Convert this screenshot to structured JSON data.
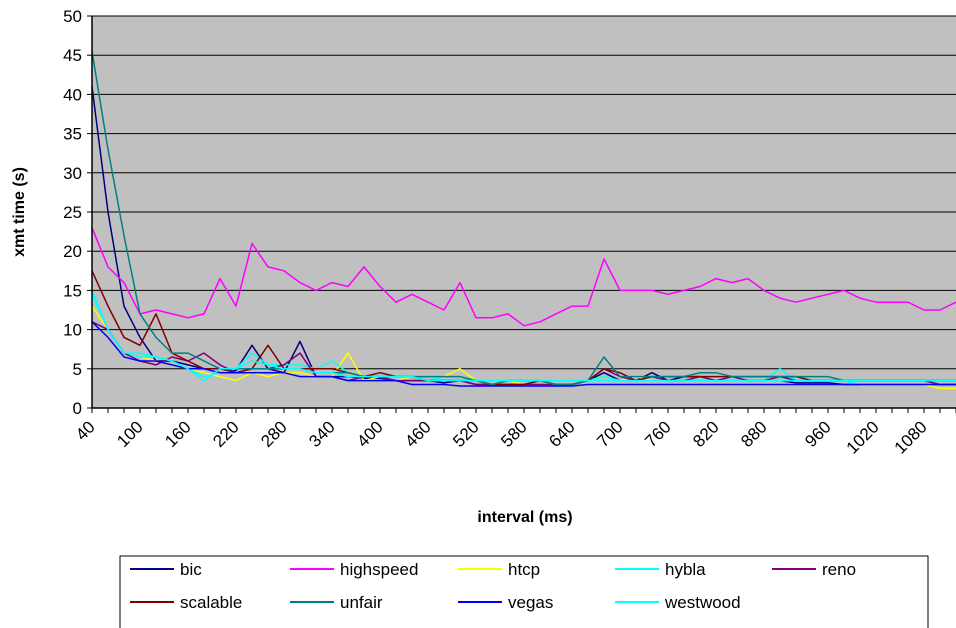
{
  "chart_data": {
    "type": "line",
    "title": "",
    "xlabel": "interval (ms)",
    "ylabel": "xmt time (s)",
    "ylim": [
      0,
      50
    ],
    "yticks": [
      0,
      5,
      10,
      15,
      20,
      25,
      30,
      35,
      40,
      45,
      50
    ],
    "x": [
      40,
      60,
      80,
      100,
      120,
      140,
      160,
      180,
      200,
      220,
      240,
      260,
      280,
      300,
      320,
      340,
      360,
      380,
      400,
      420,
      440,
      460,
      480,
      500,
      520,
      540,
      560,
      580,
      600,
      620,
      640,
      660,
      680,
      700,
      720,
      740,
      760,
      780,
      800,
      820,
      840,
      860,
      880,
      900,
      920,
      940,
      960,
      980,
      1000,
      1020,
      1040,
      1060,
      1080,
      1100,
      1120
    ],
    "xtick_labels": [
      "40",
      "100",
      "160",
      "220",
      "280",
      "340",
      "400",
      "460",
      "520",
      "580",
      "640",
      "700",
      "760",
      "820",
      "880",
      "960",
      "1020",
      "1080"
    ],
    "grid": true,
    "plot_background": "#c0c0c0",
    "legend_position": "bottom",
    "series": [
      {
        "name": "bic",
        "color": "#000080",
        "values": [
          41,
          25,
          13,
          9,
          6,
          6,
          5.5,
          5,
          5,
          4.8,
          8,
          5,
          4.5,
          8.5,
          4,
          4,
          4,
          3.8,
          3.8,
          3.5,
          3.5,
          3.5,
          3.2,
          3.5,
          3,
          3,
          3,
          3,
          3,
          3,
          3,
          3.5,
          4.5,
          3.5,
          3.5,
          4.5,
          3.5,
          4,
          4,
          3.5,
          3.5,
          3.5,
          3.5,
          3.5,
          3.2,
          3.2,
          3.2,
          3,
          3,
          3,
          3,
          3,
          3,
          3,
          3
        ]
      },
      {
        "name": "highspeed",
        "color": "#ff00ff",
        "values": [
          23,
          18,
          16,
          12,
          12.5,
          12,
          11.5,
          12,
          16.5,
          13,
          21,
          18,
          17.5,
          16,
          15,
          16,
          15.5,
          18,
          15.5,
          13.5,
          14.5,
          13.5,
          12.5,
          16,
          11.5,
          11.5,
          12,
          10.5,
          11,
          12,
          13,
          13,
          19,
          15,
          15,
          15,
          14.5,
          15,
          15.5,
          16.5,
          16,
          16.5,
          15,
          14,
          13.5,
          14,
          14.5,
          15,
          14,
          13.5,
          13.5,
          13.5,
          12.5,
          12.5,
          13.5
        ]
      },
      {
        "name": "htcp",
        "color": "#ffff00",
        "values": [
          13,
          10,
          7,
          6.5,
          6,
          5.5,
          5,
          4.5,
          4,
          3.5,
          4.5,
          4,
          4.5,
          4.5,
          4,
          4,
          7,
          3.5,
          4,
          3.5,
          4,
          3.5,
          4,
          5,
          3.5,
          3,
          3.5,
          3,
          3,
          3,
          3,
          3.5,
          4,
          3.5,
          4,
          3.5,
          3.5,
          3.5,
          4,
          3.5,
          3.5,
          3.5,
          3.5,
          3.5,
          3.5,
          3.5,
          3.5,
          3.5,
          3,
          3,
          3,
          3,
          3,
          2.5,
          2.5
        ]
      },
      {
        "name": "hybla",
        "color": "#00ffff",
        "values": [
          14.5,
          10,
          7,
          6.5,
          6.5,
          6,
          5,
          4,
          4.5,
          5,
          7,
          5.5,
          5.5,
          5.5,
          5,
          6,
          4.5,
          4,
          4,
          4,
          4,
          3.5,
          4,
          4,
          3.5,
          3.5,
          3.5,
          3.5,
          3,
          3,
          3,
          3.5,
          4,
          3.5,
          3.5,
          3.5,
          3.5,
          3.5,
          4,
          3.5,
          3.5,
          3.5,
          3.5,
          5,
          3.5,
          3.5,
          3.5,
          3.5,
          3,
          3,
          3,
          3,
          3,
          3,
          3
        ]
      },
      {
        "name": "reno",
        "color": "#800080",
        "values": [
          11,
          10,
          7,
          6,
          5.5,
          6.5,
          6,
          7,
          5.5,
          4.5,
          5,
          5,
          5.5,
          7,
          4,
          4,
          3.5,
          4,
          4,
          3.5,
          3.5,
          3.5,
          3.5,
          3.5,
          3,
          3,
          3,
          3,
          3,
          3,
          3,
          3.5,
          5,
          4,
          3.5,
          4,
          3.5,
          3.5,
          4,
          3.5,
          4,
          3.5,
          3.5,
          4,
          3.5,
          3.5,
          3.5,
          3.5,
          3.5,
          3.5,
          3.5,
          3.5,
          3.5,
          3,
          3
        ]
      },
      {
        "name": "scalable",
        "color": "#800000",
        "values": [
          17.5,
          13,
          9,
          8,
          12,
          7,
          6,
          5,
          5,
          4.5,
          5,
          8,
          5,
          5,
          5,
          5,
          4.5,
          4,
          4.5,
          4,
          4,
          3.5,
          3.5,
          3.5,
          3.5,
          3,
          3,
          3,
          3.5,
          3,
          3,
          3.5,
          5,
          4.5,
          3.5,
          4,
          4,
          4,
          4,
          4,
          4,
          4,
          4,
          4,
          4,
          3.5,
          3.5,
          3.5,
          3.5,
          3.5,
          3.5,
          3.5,
          3.5,
          3.5,
          3.5
        ]
      },
      {
        "name": "unfair",
        "color": "#008080",
        "values": [
          45.5,
          33,
          22,
          12,
          9,
          7,
          7,
          6,
          5,
          5,
          5,
          5,
          5,
          5,
          4.5,
          4.5,
          4.5,
          4,
          4,
          4,
          4,
          4,
          4,
          4,
          3.5,
          3,
          3.5,
          3.5,
          3.5,
          3,
          3,
          3.5,
          6.5,
          4,
          4,
          4,
          4,
          4,
          4.5,
          4.5,
          4,
          4,
          4,
          4,
          4,
          4,
          4,
          3.5,
          3.5,
          3.5,
          3.5,
          3.5,
          3.5,
          3.5,
          3.5
        ]
      },
      {
        "name": "vegas",
        "color": "#0000ff",
        "values": [
          11,
          9,
          6.5,
          6,
          6,
          5.5,
          5,
          5,
          4.5,
          4.5,
          4.5,
          4.5,
          4.5,
          4,
          4,
          4,
          3.5,
          3.5,
          3.5,
          3.5,
          3,
          3,
          3,
          2.8,
          2.8,
          2.8,
          2.8,
          2.8,
          2.8,
          2.8,
          2.8,
          3,
          3,
          3,
          3,
          3,
          3,
          3,
          3,
          3,
          3,
          3,
          3,
          3,
          3,
          3,
          3,
          3,
          3,
          3,
          3,
          3,
          3,
          3,
          3
        ]
      },
      {
        "name": "westwood",
        "color": "#00ffff",
        "values": [
          15,
          10,
          7,
          7,
          6.5,
          6,
          5,
          3.5,
          5,
          5,
          6,
          5.5,
          5,
          5,
          4.5,
          4.5,
          4,
          4,
          4,
          4,
          4,
          3.5,
          3.5,
          3.5,
          3.5,
          3.5,
          3.5,
          3.5,
          3.5,
          3.5,
          3.5,
          3.5,
          3.5,
          3.5,
          3.5,
          3.5,
          3.5,
          3.5,
          3.5,
          3.5,
          3.5,
          3.5,
          3.5,
          3.5,
          3.5,
          3.5,
          3.5,
          3.5,
          3.5,
          3.5,
          3.5,
          3.5,
          3.5,
          3.5,
          3.5
        ]
      }
    ]
  }
}
